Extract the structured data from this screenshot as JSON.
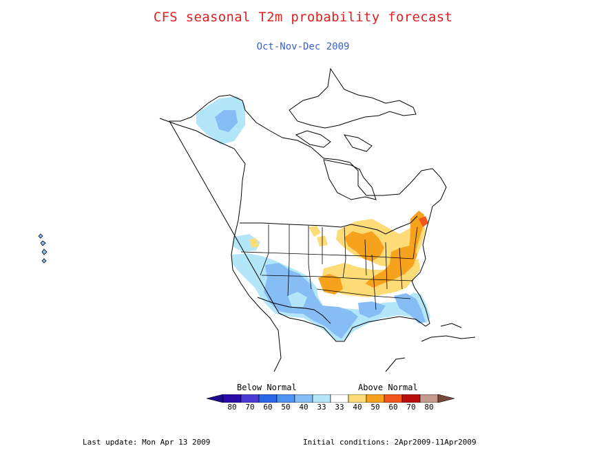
{
  "title": "CFS seasonal T2m probability forecast",
  "subtitle": "Oct-Nov-Dec 2009",
  "legend": {
    "below_label": "Below Normal",
    "above_label": "Above Normal",
    "categories": [
      {
        "label": "80",
        "color": "#2a0aa8"
      },
      {
        "label": "70",
        "color": "#4c3cd4"
      },
      {
        "label": "60",
        "color": "#2a66e6"
      },
      {
        "label": "50",
        "color": "#4f94f0"
      },
      {
        "label": "40",
        "color": "#86bdf4"
      },
      {
        "label": "33",
        "color": "#b4e6fa"
      },
      {
        "label": "33",
        "color": "#ffffff"
      },
      {
        "label": "40",
        "color": "#fddc78"
      },
      {
        "label": "50",
        "color": "#f7a21c"
      },
      {
        "label": "60",
        "color": "#f2561a"
      },
      {
        "label": "70",
        "color": "#b80e0e"
      },
      {
        "label": "80",
        "color": "#c49a8e"
      }
    ],
    "end_colors": {
      "low": "#1a0a8c",
      "high": "#7a4a38"
    }
  },
  "footer": {
    "last_update": "Last update: Mon Apr 13 2009",
    "initial_conditions": "Initial conditions: 2Apr2009-11Apr2009"
  }
}
